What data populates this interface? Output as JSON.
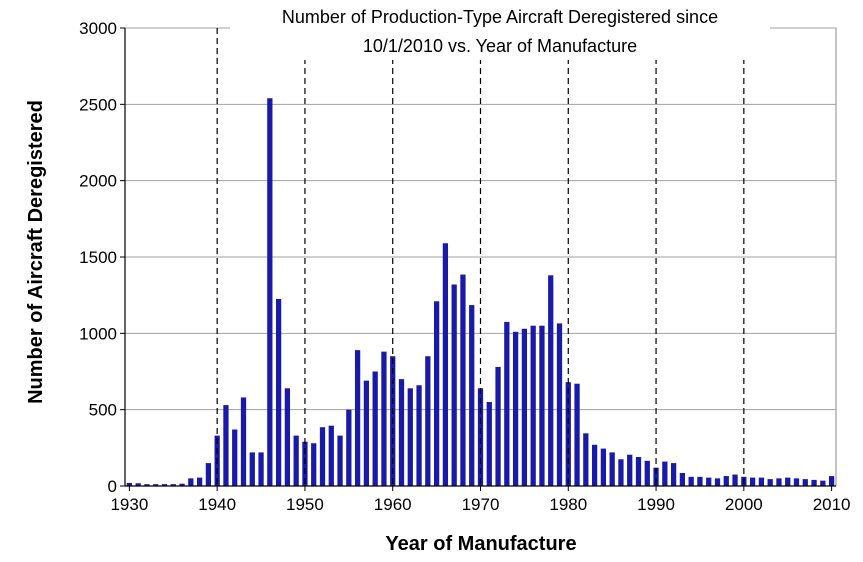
{
  "chart_data": {
    "type": "bar",
    "title_lines": [
      "Number of Production-Type Aircraft Deregistered since",
      "10/1/2010 vs. Year of Manufacture"
    ],
    "xlabel": "Year of Manufacture",
    "ylabel": "Number of Aircraft Deregistered",
    "xlim": [
      1930,
      2010
    ],
    "ylim": [
      0,
      3000
    ],
    "x_ticks": [
      1930,
      1940,
      1950,
      1960,
      1970,
      1980,
      1990,
      2000,
      2010
    ],
    "y_ticks": [
      0,
      500,
      1000,
      1500,
      2000,
      2500,
      3000
    ],
    "decade_markers": [
      1940,
      1950,
      1960,
      1970,
      1980,
      1990,
      2000
    ],
    "bar_color": "#1a1aa8",
    "grid": "horizontal",
    "legend": "none",
    "categories": [
      1930,
      1931,
      1932,
      1933,
      1934,
      1935,
      1936,
      1937,
      1938,
      1939,
      1940,
      1941,
      1942,
      1943,
      1944,
      1945,
      1946,
      1947,
      1948,
      1949,
      1950,
      1951,
      1952,
      1953,
      1954,
      1955,
      1956,
      1957,
      1958,
      1959,
      1960,
      1961,
      1962,
      1963,
      1964,
      1965,
      1966,
      1967,
      1968,
      1969,
      1970,
      1971,
      1972,
      1973,
      1974,
      1975,
      1976,
      1977,
      1978,
      1979,
      1980,
      1981,
      1982,
      1983,
      1984,
      1985,
      1986,
      1987,
      1988,
      1989,
      1990,
      1991,
      1992,
      1993,
      1994,
      1995,
      1996,
      1997,
      1998,
      1999,
      2000,
      2001,
      2002,
      2003,
      2004,
      2005,
      2006,
      2007,
      2008,
      2009,
      2010
    ],
    "values": [
      20,
      18,
      12,
      12,
      12,
      12,
      15,
      50,
      55,
      150,
      330,
      530,
      370,
      580,
      220,
      220,
      2540,
      1225,
      640,
      330,
      290,
      280,
      385,
      395,
      330,
      500,
      890,
      690,
      750,
      880,
      850,
      700,
      640,
      660,
      850,
      1210,
      1590,
      1320,
      1385,
      1185,
      640,
      550,
      780,
      1075,
      1010,
      1030,
      1050,
      1050,
      1380,
      1065,
      680,
      670,
      345,
      270,
      245,
      220,
      175,
      205,
      190,
      165,
      120,
      160,
      150,
      85,
      60,
      60,
      55,
      50,
      65,
      75,
      60,
      55,
      55,
      45,
      50,
      55,
      50,
      45,
      40,
      35,
      65
    ]
  }
}
